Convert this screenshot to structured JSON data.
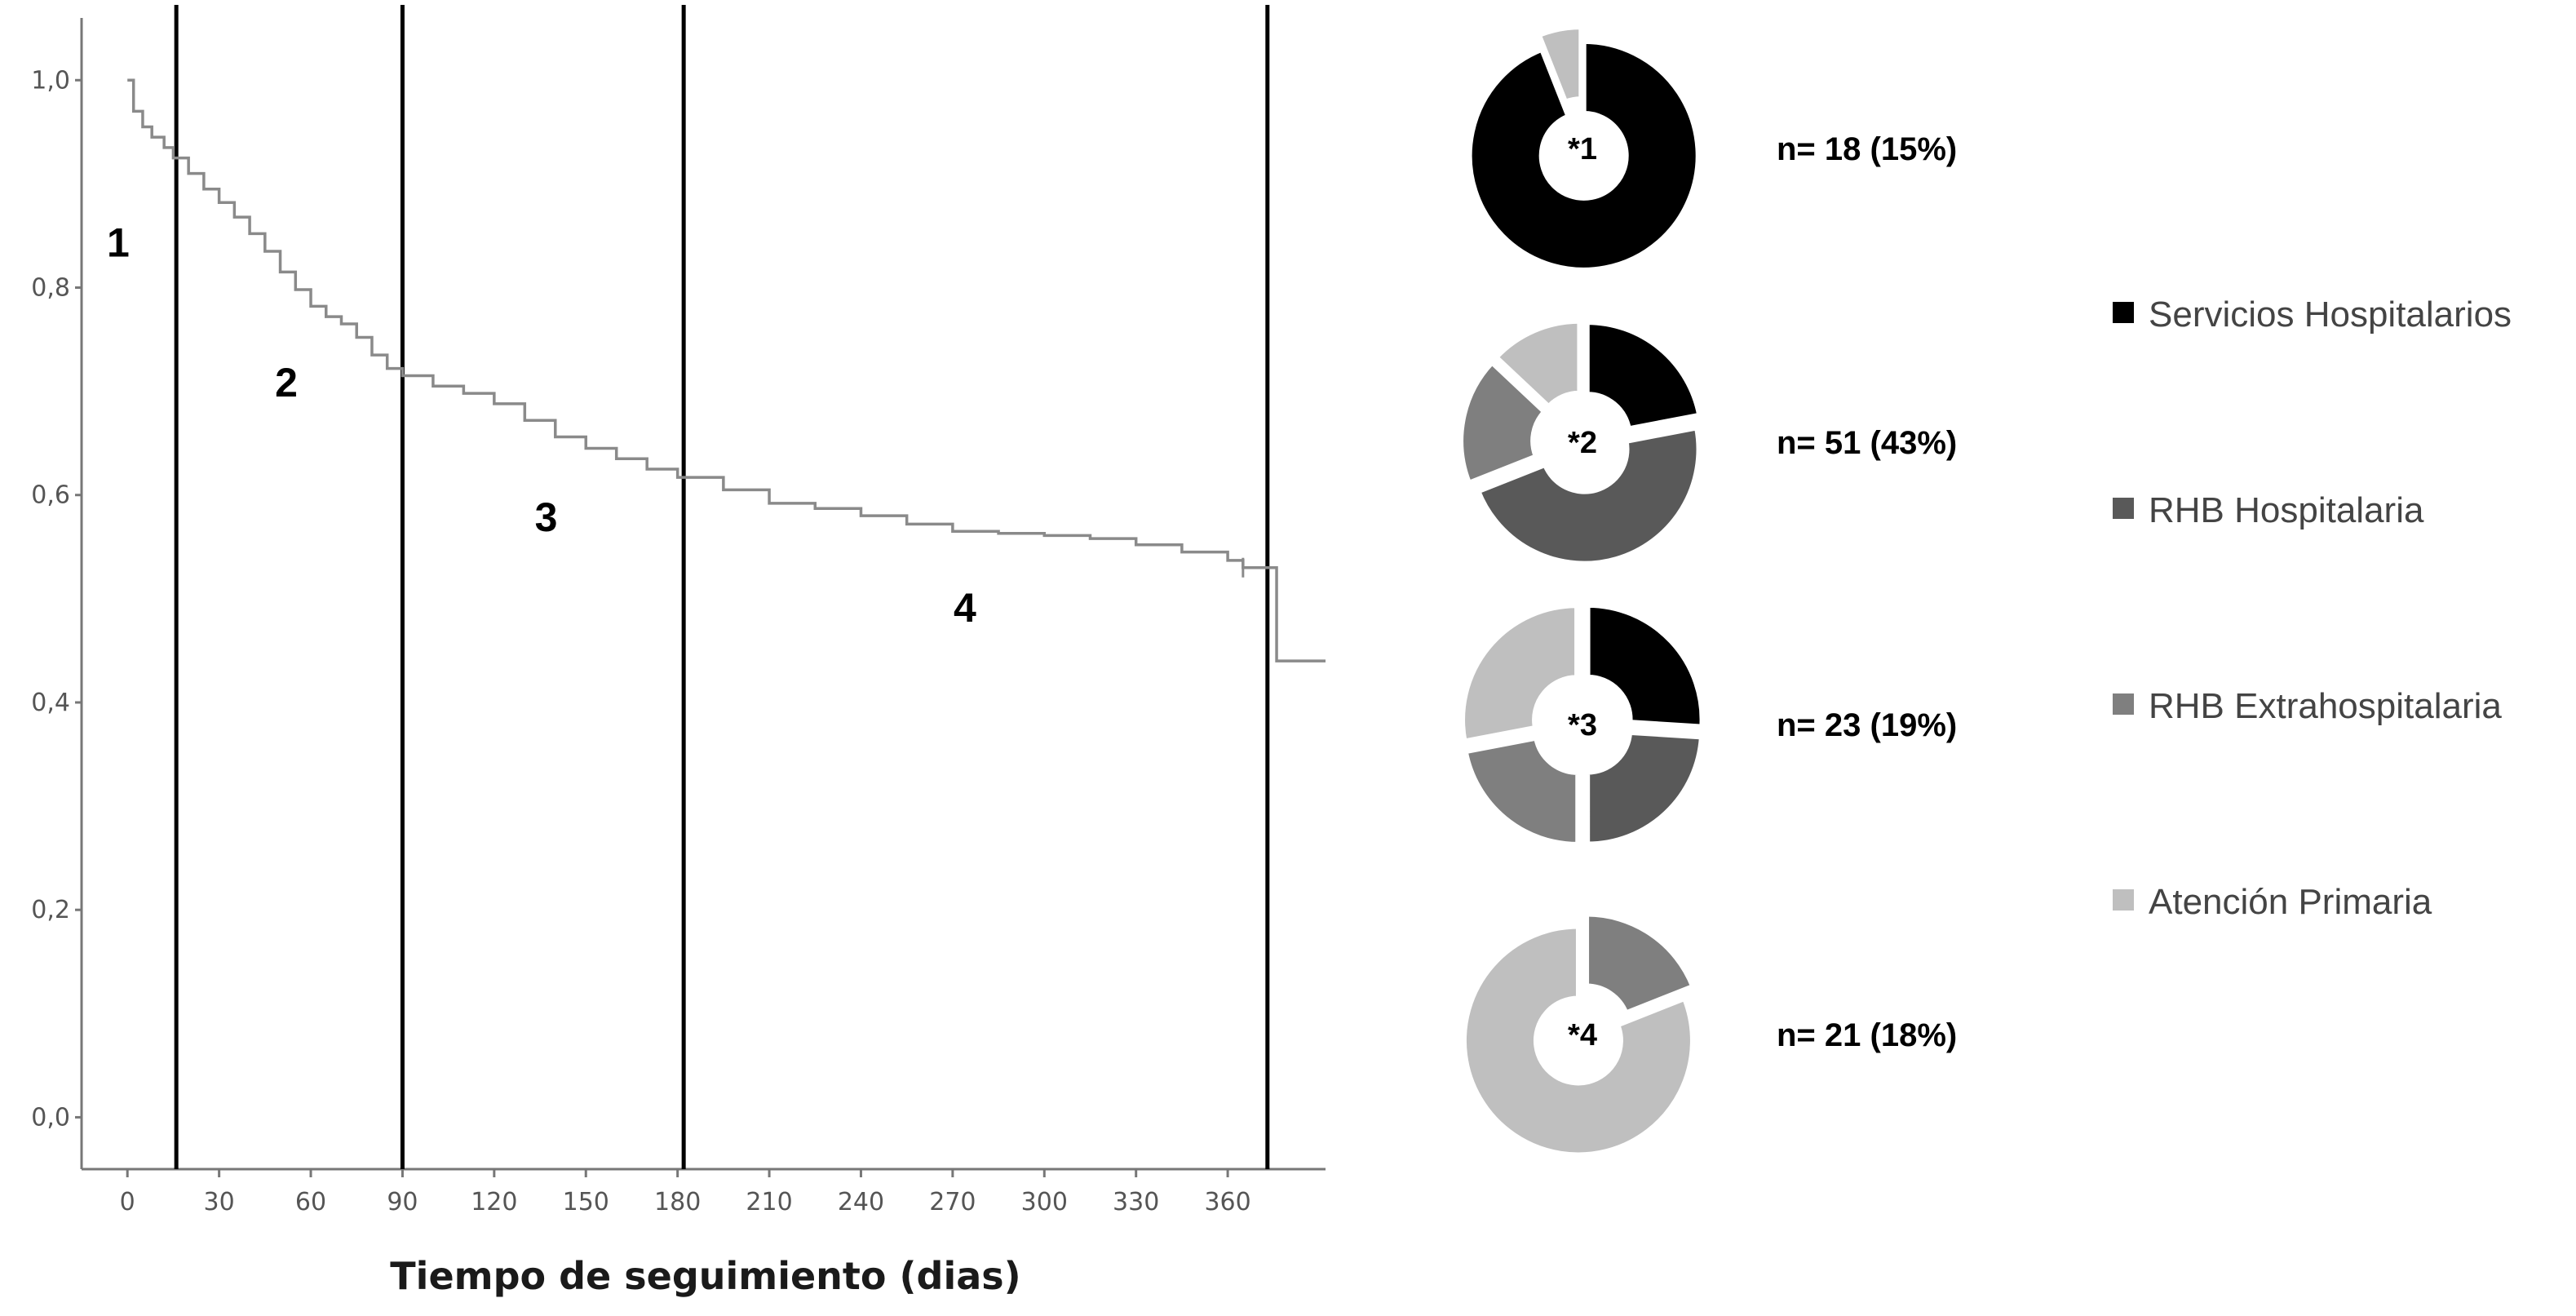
{
  "chart_data": [
    {
      "type": "line",
      "subtype": "kaplan-meier-step",
      "xlabel": "Tiempo de seguimiento (dias)",
      "ylabel": "",
      "xlim": [
        -15,
        392
      ],
      "ylim": [
        -0.05,
        1.06
      ],
      "xticks": [
        "0",
        "30",
        "60",
        "90",
        "120",
        "150",
        "180",
        "210",
        "240",
        "270",
        "300",
        "330",
        "360"
      ],
      "yticks": [
        "0,0",
        "0,2",
        "0,4",
        "0,6",
        "0,8",
        "1,0"
      ],
      "series": [
        {
          "line_color": "#8a8a8a",
          "points": [
            [
              0,
              1.0
            ],
            [
              2,
              0.97
            ],
            [
              5,
              0.955
            ],
            [
              8,
              0.945
            ],
            [
              12,
              0.935
            ],
            [
              15,
              0.925
            ],
            [
              20,
              0.91
            ],
            [
              25,
              0.895
            ],
            [
              30,
              0.882
            ],
            [
              35,
              0.868
            ],
            [
              40,
              0.852
            ],
            [
              45,
              0.835
            ],
            [
              50,
              0.815
            ],
            [
              55,
              0.798
            ],
            [
              60,
              0.782
            ],
            [
              65,
              0.772
            ],
            [
              70,
              0.765
            ],
            [
              75,
              0.752
            ],
            [
              80,
              0.735
            ],
            [
              85,
              0.722
            ],
            [
              90,
              0.715
            ],
            [
              100,
              0.705
            ],
            [
              110,
              0.698
            ],
            [
              120,
              0.688
            ],
            [
              130,
              0.672
            ],
            [
              140,
              0.656
            ],
            [
              150,
              0.645
            ],
            [
              160,
              0.635
            ],
            [
              170,
              0.625
            ],
            [
              180,
              0.617
            ],
            [
              195,
              0.605
            ],
            [
              210,
              0.592
            ],
            [
              225,
              0.587
            ],
            [
              240,
              0.58
            ],
            [
              255,
              0.572
            ],
            [
              270,
              0.565
            ],
            [
              285,
              0.563
            ],
            [
              300,
              0.561
            ],
            [
              315,
              0.558
            ],
            [
              330,
              0.552
            ],
            [
              345,
              0.545
            ],
            [
              360,
              0.537
            ],
            [
              365,
              0.53
            ],
            [
              370,
              0.53
            ],
            [
              375,
              0.53
            ],
            [
              376,
              0.44
            ],
            [
              392,
              0.44
            ]
          ],
          "censor_marks_x": [
            365
          ]
        }
      ],
      "vertical_lines_x": [
        16,
        90,
        182,
        373
      ],
      "period_labels": [
        {
          "label": "1",
          "x": -3,
          "y": 0.83
        },
        {
          "label": "2",
          "x": 52,
          "y": 0.695
        },
        {
          "label": "3",
          "x": 137,
          "y": 0.565
        },
        {
          "label": "4",
          "x": 274,
          "y": 0.478
        }
      ],
      "grid": false
    },
    {
      "type": "pie",
      "subtype": "donut",
      "center_label": "*1",
      "n_label": "n= 18 (15%)",
      "values": [
        {
          "category": "Servicios Hospitalarios",
          "value": 94
        },
        {
          "category": "Atención Primaria",
          "value": 6
        }
      ]
    },
    {
      "type": "pie",
      "subtype": "donut",
      "center_label": "*2",
      "n_label": "n= 51 (43%)",
      "values": [
        {
          "category": "Servicios Hospitalarios",
          "value": 22
        },
        {
          "category": "RHB Hospitalaria",
          "value": 47
        },
        {
          "category": "RHB Extrahospitalaria",
          "value": 18
        },
        {
          "category": "Atención Primaria",
          "value": 13
        }
      ]
    },
    {
      "type": "pie",
      "subtype": "donut",
      "center_label": "*3",
      "n_label": "n= 23 (19%)",
      "values": [
        {
          "category": "Servicios Hospitalarios",
          "value": 26
        },
        {
          "category": "RHB Hospitalaria",
          "value": 24
        },
        {
          "category": "RHB Extrahospitalaria",
          "value": 22
        },
        {
          "category": "Atención Primaria",
          "value": 28
        }
      ]
    },
    {
      "type": "pie",
      "subtype": "donut",
      "center_label": "*4",
      "n_label": "n= 21 (18%)",
      "values": [
        {
          "category": "RHB Extrahospitalaria",
          "value": 19
        },
        {
          "category": "Atención Primaria",
          "value": 81
        }
      ]
    }
  ],
  "legend": {
    "placement": "right",
    "items": [
      {
        "label": "Servicios Hospitalarios",
        "color": "#000000"
      },
      {
        "label": "RHB Hospitalaria",
        "color": "#595959"
      },
      {
        "label": "RHB Extrahospitalaria",
        "color": "#7f7f7f"
      },
      {
        "label": "Atención Primaria",
        "color": "#bfbfbf"
      }
    ]
  }
}
